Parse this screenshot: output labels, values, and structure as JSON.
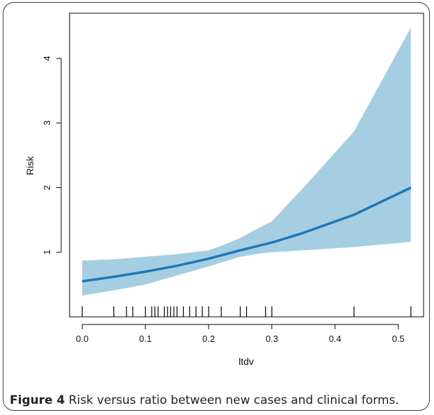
{
  "chart_data": {
    "type": "line",
    "xlabel": "ltdv",
    "ylabel": "Risk",
    "xlim": [
      -0.02,
      0.54
    ],
    "ylim": [
      0.0,
      4.7
    ],
    "x_ticks": [
      "0.0",
      "0.1",
      "0.2",
      "0.3",
      "0.4",
      "0.5"
    ],
    "y_ticks": [
      "1",
      "2",
      "3",
      "4"
    ],
    "series": [
      {
        "x": [
          0.0,
          0.05,
          0.1,
          0.15,
          0.2,
          0.25,
          0.3,
          0.35,
          0.43,
          0.52
        ],
        "values": [
          0.55,
          0.62,
          0.7,
          0.79,
          0.9,
          1.03,
          1.15,
          1.3,
          1.58,
          2.0
        ]
      }
    ],
    "confidence_band": {
      "x": [
        0.0,
        0.05,
        0.1,
        0.15,
        0.2,
        0.22,
        0.25,
        0.28,
        0.3,
        0.35,
        0.43,
        0.52
      ],
      "lower": [
        0.33,
        0.41,
        0.5,
        0.64,
        0.78,
        0.84,
        0.93,
        0.98,
        1.0,
        1.03,
        1.08,
        1.16
      ],
      "upper": [
        0.87,
        0.89,
        0.93,
        0.97,
        1.03,
        1.1,
        1.22,
        1.38,
        1.48,
        2.0,
        2.87,
        4.48
      ]
    },
    "rug": [
      0.0,
      0.05,
      0.07,
      0.08,
      0.1,
      0.11,
      0.115,
      0.12,
      0.13,
      0.135,
      0.14,
      0.145,
      0.15,
      0.16,
      0.17,
      0.18,
      0.19,
      0.2,
      0.22,
      0.25,
      0.26,
      0.29,
      0.3,
      0.43,
      0.52
    ],
    "colors": {
      "band": "#a6cee3",
      "line": "#1f78b4"
    }
  },
  "caption": {
    "label": "Figure 4",
    "text": " Risk versus ratio between new cases and clinical forms."
  }
}
